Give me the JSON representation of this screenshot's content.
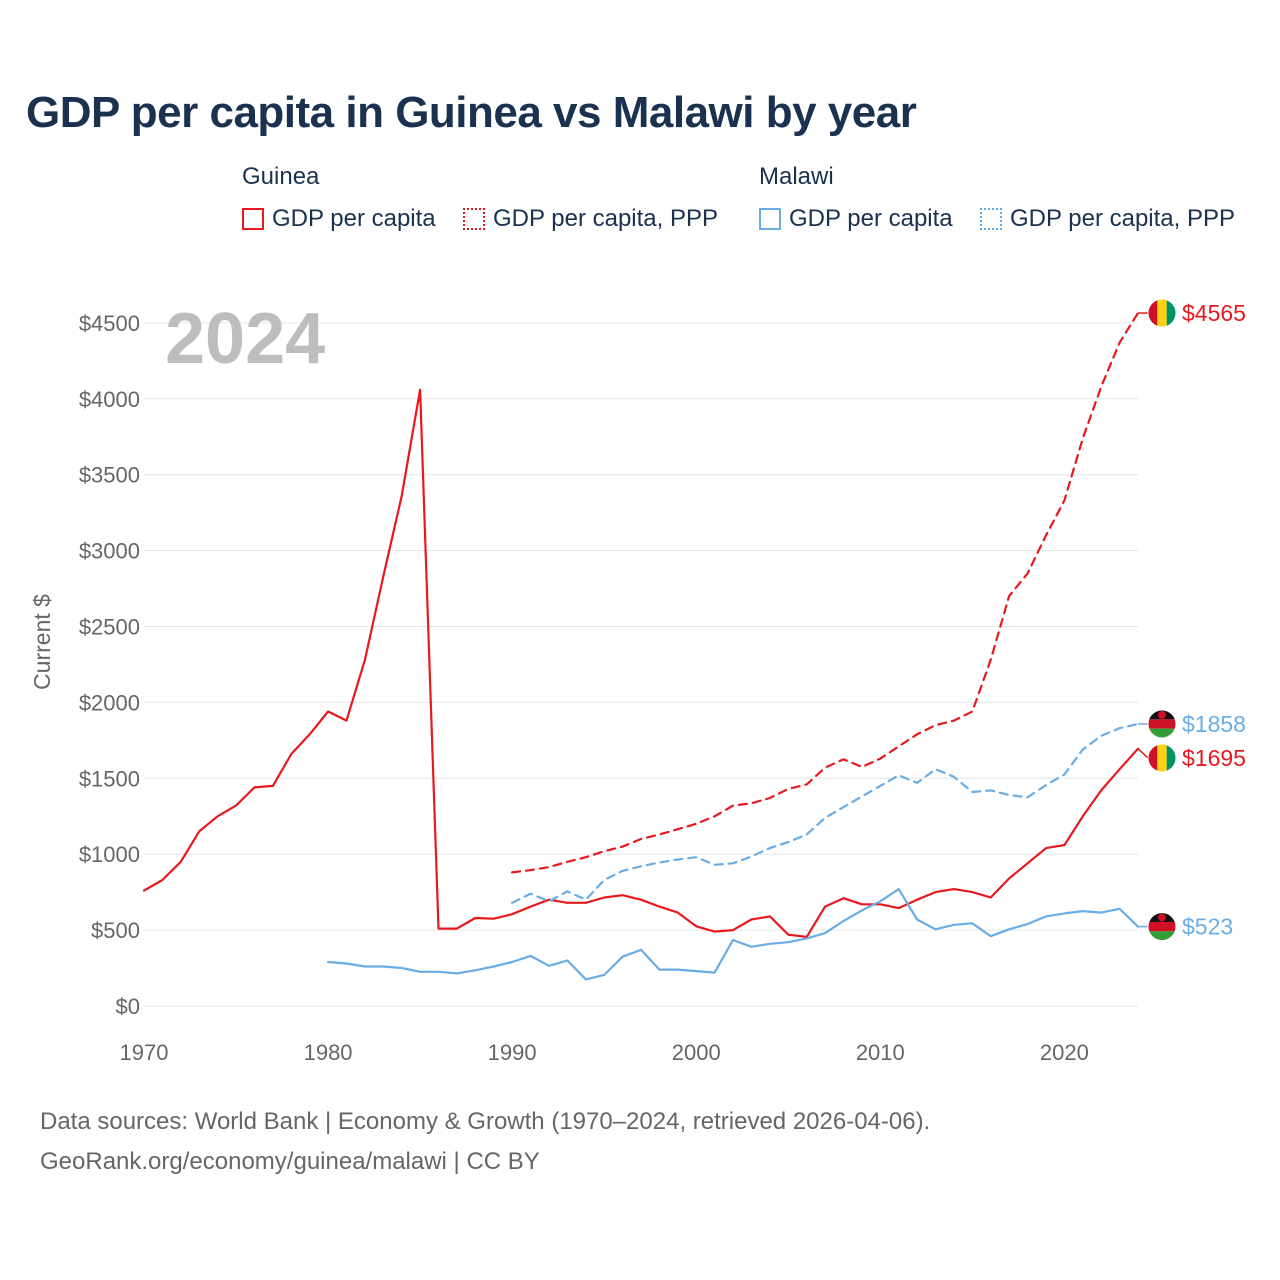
{
  "title": "GDP per capita in Guinea vs Malawi by year",
  "legend": {
    "groups": [
      {
        "country": "Guinea",
        "items": [
          {
            "label": "GDP per capita",
            "color": "#e8191e",
            "style": "solid"
          },
          {
            "label": "GDP per capita, PPP",
            "color": "#e8191e",
            "style": "dotted"
          }
        ]
      },
      {
        "country": "Malawi",
        "items": [
          {
            "label": "GDP per capita",
            "color": "#6aace4",
            "style": "solid"
          },
          {
            "label": "GDP per capita, PPP",
            "color": "#6aace4",
            "style": "dotted"
          }
        ]
      }
    ]
  },
  "year_label": "2024",
  "chart_data": {
    "type": "line",
    "title": "GDP per capita in Guinea vs Malawi by year",
    "xlabel": "",
    "ylabel": "Current $",
    "xlim": [
      1970,
      2024
    ],
    "ylim": [
      0,
      4700
    ],
    "x_ticks": [
      1970,
      1980,
      1990,
      2000,
      2010,
      2020
    ],
    "y_ticks": [
      0,
      500,
      1000,
      1500,
      2000,
      2500,
      3000,
      3500,
      4000,
      4500
    ],
    "y_tick_labels": [
      "$0",
      "$500",
      "$1000",
      "$1500",
      "$2000",
      "$2500",
      "$3000",
      "$3500",
      "$4000",
      "$4500"
    ],
    "grid": true,
    "series": [
      {
        "name": "Guinea GDP per capita",
        "color": "#e8191e",
        "dash": "solid",
        "start_year": 1970,
        "values": [
          760,
          830,
          950,
          1150,
          1250,
          1320,
          1440,
          1450,
          1660,
          1790,
          1940,
          1880,
          2280,
          2830,
          3360,
          4060,
          510,
          510,
          580,
          575,
          605,
          655,
          700,
          680,
          680,
          715,
          730,
          700,
          655,
          615,
          525,
          490,
          500,
          570,
          590,
          470,
          455,
          655,
          710,
          670,
          670,
          645,
          700,
          750,
          770,
          750,
          715,
          840,
          940,
          1040,
          1060,
          1250,
          1420,
          1560,
          1695
        ],
        "end_label": "$1695"
      },
      {
        "name": "Guinea GDP per capita, PPP",
        "color": "#e8191e",
        "dash": "dashed",
        "start_year": 1990,
        "values": [
          880,
          895,
          915,
          950,
          980,
          1020,
          1050,
          1100,
          1130,
          1165,
          1200,
          1250,
          1320,
          1335,
          1370,
          1430,
          1460,
          1570,
          1625,
          1575,
          1630,
          1710,
          1790,
          1850,
          1880,
          1940,
          2280,
          2700,
          2850,
          3100,
          3330,
          3740,
          4080,
          4370,
          4565
        ],
        "end_label": "$4565"
      },
      {
        "name": "Malawi GDP per capita",
        "color": "#6aace4",
        "dash": "solid",
        "start_year": 1980,
        "values": [
          290,
          280,
          260,
          260,
          250,
          225,
          225,
          215,
          235,
          260,
          290,
          330,
          265,
          300,
          175,
          205,
          325,
          370,
          240,
          240,
          230,
          220,
          435,
          390,
          410,
          420,
          445,
          480,
          560,
          630,
          690,
          770,
          570,
          505,
          535,
          545,
          460,
          505,
          540,
          590,
          610,
          625,
          615,
          640,
          523
        ],
        "end_label": "$523"
      },
      {
        "name": "Malawi GDP per capita, PPP",
        "color": "#6aace4",
        "dash": "dashed",
        "start_year": 1990,
        "values": [
          680,
          740,
          690,
          755,
          700,
          830,
          890,
          920,
          945,
          965,
          980,
          930,
          940,
          985,
          1040,
          1080,
          1130,
          1240,
          1310,
          1380,
          1450,
          1520,
          1470,
          1560,
          1510,
          1410,
          1420,
          1390,
          1375,
          1455,
          1525,
          1690,
          1780,
          1830,
          1858
        ],
        "end_label": "$1858"
      }
    ]
  },
  "sources": {
    "line1": "Data sources: World Bank | Economy & Growth (1970–2024, retrieved 2026-04-06).",
    "line2": "GeoRank.org/economy/guinea/malawi | CC BY"
  }
}
